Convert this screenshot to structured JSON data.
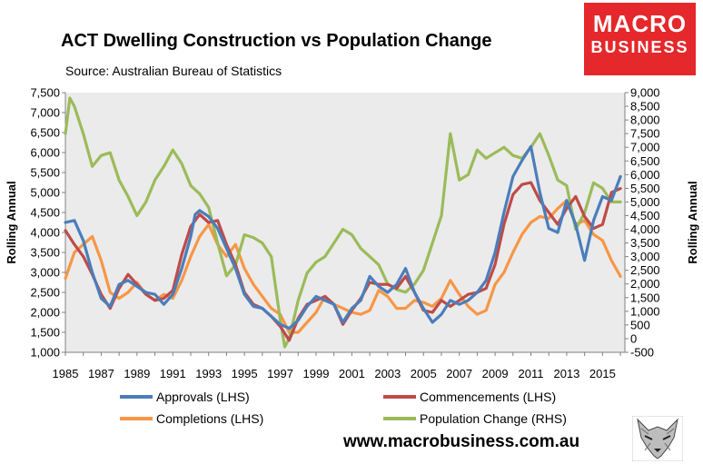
{
  "header": {
    "title": "ACT Dwelling Construction vs Population Change",
    "subtitle": "Source: Australian Bureau of Statistics"
  },
  "logo": {
    "line1": "MACRO",
    "line2": "BUSINESS"
  },
  "footer": {
    "url": "www.macrobusiness.com.au"
  },
  "colors": {
    "approvals": "#4a7ebb",
    "commencements": "#be4b48",
    "completions": "#f79646",
    "population": "#9bbb59",
    "plot_bg": "#ebebeb",
    "logo_bg": "#e5282b"
  },
  "chart_data": {
    "type": "line",
    "title": "ACT Dwelling Construction vs Population Change",
    "subtitle": "Source: Australian Bureau of Statistics",
    "ylabel": "Rolling Annual",
    "y2label": "Rolling Annual",
    "ylim": [
      1000,
      7500
    ],
    "y2lim": [
      -500,
      9000
    ],
    "yticks": [
      "1,000",
      "1,500",
      "2,000",
      "2,500",
      "3,000",
      "3,500",
      "4,000",
      "4,500",
      "5,000",
      "5,500",
      "6,000",
      "6,500",
      "7,000",
      "7,500"
    ],
    "y2ticks": [
      "-500",
      "0",
      "500",
      "1,000",
      "1,500",
      "2,000",
      "2,500",
      "3,000",
      "3,500",
      "4,000",
      "4,500",
      "5,000",
      "5,500",
      "6,000",
      "6,500",
      "7,000",
      "7,500",
      "8,000",
      "8,500",
      "9,000"
    ],
    "xticks": [
      "1985",
      "1987",
      "1989",
      "1991",
      "1993",
      "1995",
      "1997",
      "1999",
      "2001",
      "2003",
      "2005",
      "2007",
      "2009",
      "2011",
      "2013",
      "2015"
    ],
    "xlim": [
      1985,
      2016.25
    ],
    "grid": false,
    "legend_position": "bottom",
    "series": [
      {
        "name": "Approvals (LHS)",
        "axis": "left",
        "color": "#4a7ebb",
        "points": [
          [
            1985,
            4250
          ],
          [
            1985.5,
            4300
          ],
          [
            1986,
            3800
          ],
          [
            1986.5,
            3000
          ],
          [
            1987,
            2350
          ],
          [
            1987.5,
            2150
          ],
          [
            1988,
            2700
          ],
          [
            1988.5,
            2800
          ],
          [
            1989,
            2650
          ],
          [
            1989.5,
            2500
          ],
          [
            1990,
            2450
          ],
          [
            1990.5,
            2200
          ],
          [
            1991,
            2450
          ],
          [
            1991.5,
            3100
          ],
          [
            1992,
            3900
          ],
          [
            1992.25,
            4450
          ],
          [
            1992.5,
            4550
          ],
          [
            1993,
            4400
          ],
          [
            1993.5,
            4100
          ],
          [
            1994,
            3600
          ],
          [
            1994.5,
            3100
          ],
          [
            1995,
            2450
          ],
          [
            1995.5,
            2150
          ],
          [
            1996,
            2100
          ],
          [
            1996.5,
            1900
          ],
          [
            1997,
            1700
          ],
          [
            1997.5,
            1600
          ],
          [
            1998,
            1800
          ],
          [
            1998.5,
            2150
          ],
          [
            1999,
            2400
          ],
          [
            1999.5,
            2300
          ],
          [
            2000,
            2200
          ],
          [
            2000.5,
            1750
          ],
          [
            2001,
            2100
          ],
          [
            2001.5,
            2300
          ],
          [
            2002,
            2900
          ],
          [
            2002.5,
            2650
          ],
          [
            2003,
            2500
          ],
          [
            2003.5,
            2700
          ],
          [
            2004,
            3100
          ],
          [
            2004.5,
            2500
          ],
          [
            2005,
            2100
          ],
          [
            2005.5,
            1750
          ],
          [
            2006,
            1950
          ],
          [
            2006.5,
            2300
          ],
          [
            2007,
            2200
          ],
          [
            2007.5,
            2300
          ],
          [
            2008,
            2500
          ],
          [
            2008.5,
            2800
          ],
          [
            2009,
            3500
          ],
          [
            2009.5,
            4500
          ],
          [
            2010,
            5400
          ],
          [
            2010.5,
            5800
          ],
          [
            2011,
            6150
          ],
          [
            2011.5,
            5000
          ],
          [
            2012,
            4100
          ],
          [
            2012.5,
            4000
          ],
          [
            2013,
            4800
          ],
          [
            2013.5,
            4200
          ],
          [
            2014,
            3300
          ],
          [
            2014.5,
            4300
          ],
          [
            2015,
            4900
          ],
          [
            2015.5,
            4800
          ],
          [
            2016,
            5400
          ]
        ]
      },
      {
        "name": "Commencements (LHS)",
        "axis": "left",
        "color": "#be4b48",
        "points": [
          [
            1985,
            4050
          ],
          [
            1985.5,
            3700
          ],
          [
            1986,
            3400
          ],
          [
            1986.5,
            2950
          ],
          [
            1987,
            2450
          ],
          [
            1987.5,
            2100
          ],
          [
            1988,
            2600
          ],
          [
            1988.5,
            2950
          ],
          [
            1989,
            2700
          ],
          [
            1989.5,
            2450
          ],
          [
            1990,
            2300
          ],
          [
            1990.5,
            2350
          ],
          [
            1991,
            2550
          ],
          [
            1991.5,
            3450
          ],
          [
            1992,
            4150
          ],
          [
            1992.5,
            4450
          ],
          [
            1993,
            4250
          ],
          [
            1993.5,
            4300
          ],
          [
            1994,
            3700
          ],
          [
            1994.5,
            3200
          ],
          [
            1995,
            2500
          ],
          [
            1995.5,
            2200
          ],
          [
            1996,
            2100
          ],
          [
            1996.5,
            1900
          ],
          [
            1997,
            1650
          ],
          [
            1997.5,
            1300
          ],
          [
            1998,
            1850
          ],
          [
            1998.5,
            2200
          ],
          [
            1999,
            2300
          ],
          [
            1999.5,
            2400
          ],
          [
            2000,
            2200
          ],
          [
            2000.5,
            1700
          ],
          [
            2001,
            2050
          ],
          [
            2001.5,
            2350
          ],
          [
            2002,
            2750
          ],
          [
            2002.5,
            2700
          ],
          [
            2003,
            2700
          ],
          [
            2003.5,
            2600
          ],
          [
            2004,
            2900
          ],
          [
            2004.5,
            2500
          ],
          [
            2005,
            2050
          ],
          [
            2005.5,
            2000
          ],
          [
            2006,
            2300
          ],
          [
            2006.5,
            2150
          ],
          [
            2007,
            2300
          ],
          [
            2007.5,
            2450
          ],
          [
            2008,
            2500
          ],
          [
            2008.5,
            2600
          ],
          [
            2009,
            3200
          ],
          [
            2009.5,
            4200
          ],
          [
            2010,
            4950
          ],
          [
            2010.5,
            5200
          ],
          [
            2011,
            5250
          ],
          [
            2011.5,
            4800
          ],
          [
            2012,
            4500
          ],
          [
            2012.5,
            4200
          ],
          [
            2013,
            4600
          ],
          [
            2013.5,
            4900
          ],
          [
            2014,
            4400
          ],
          [
            2014.5,
            4100
          ],
          [
            2015,
            4200
          ],
          [
            2015.5,
            5000
          ],
          [
            2016,
            5100
          ]
        ]
      },
      {
        "name": "Completions (LHS)",
        "axis": "left",
        "color": "#f79646",
        "points": [
          [
            1985,
            2850
          ],
          [
            1985.5,
            3500
          ],
          [
            1986,
            3700
          ],
          [
            1986.5,
            3900
          ],
          [
            1987,
            3300
          ],
          [
            1987.5,
            2500
          ],
          [
            1988,
            2350
          ],
          [
            1988.5,
            2500
          ],
          [
            1989,
            2750
          ],
          [
            1989.5,
            2450
          ],
          [
            1990,
            2300
          ],
          [
            1990.5,
            2450
          ],
          [
            1991,
            2350
          ],
          [
            1991.5,
            2800
          ],
          [
            1992,
            3400
          ],
          [
            1992.5,
            3900
          ],
          [
            1993,
            4200
          ],
          [
            1993.5,
            3700
          ],
          [
            1994,
            3400
          ],
          [
            1994.5,
            3700
          ],
          [
            1995,
            3100
          ],
          [
            1995.5,
            2700
          ],
          [
            1996,
            2400
          ],
          [
            1996.5,
            2100
          ],
          [
            1997,
            1950
          ],
          [
            1997.5,
            1500
          ],
          [
            1998,
            1500
          ],
          [
            1998.5,
            1750
          ],
          [
            1999,
            2000
          ],
          [
            1999.5,
            2400
          ],
          [
            2000,
            2200
          ],
          [
            2000.5,
            2100
          ],
          [
            2001,
            2000
          ],
          [
            2001.5,
            1950
          ],
          [
            2002,
            2050
          ],
          [
            2002.5,
            2550
          ],
          [
            2003,
            2400
          ],
          [
            2003.5,
            2100
          ],
          [
            2004,
            2100
          ],
          [
            2004.5,
            2300
          ],
          [
            2005,
            2250
          ],
          [
            2005.5,
            2150
          ],
          [
            2006,
            2350
          ],
          [
            2006.5,
            2800
          ],
          [
            2007,
            2450
          ],
          [
            2007.5,
            2150
          ],
          [
            2008,
            1950
          ],
          [
            2008.5,
            2050
          ],
          [
            2009,
            2700
          ],
          [
            2009.5,
            3000
          ],
          [
            2010,
            3500
          ],
          [
            2010.5,
            3950
          ],
          [
            2011,
            4250
          ],
          [
            2011.5,
            4400
          ],
          [
            2012,
            4350
          ],
          [
            2012.5,
            4600
          ],
          [
            2013,
            4800
          ],
          [
            2013.5,
            4200
          ],
          [
            2014,
            4300
          ],
          [
            2014.5,
            3950
          ],
          [
            2015,
            3800
          ],
          [
            2015.5,
            3300
          ],
          [
            2016,
            2900
          ]
        ]
      },
      {
        "name": "Population Change (RHS)",
        "axis": "right",
        "color": "#9bbb59",
        "points": [
          [
            1985,
            7500
          ],
          [
            1985.25,
            8800
          ],
          [
            1985.5,
            8500
          ],
          [
            1986,
            7500
          ],
          [
            1986.5,
            6300
          ],
          [
            1987,
            6700
          ],
          [
            1987.5,
            6800
          ],
          [
            1988,
            5800
          ],
          [
            1988.5,
            5200
          ],
          [
            1989,
            4500
          ],
          [
            1989.5,
            5000
          ],
          [
            1990,
            5800
          ],
          [
            1990.5,
            6300
          ],
          [
            1991,
            6900
          ],
          [
            1991.5,
            6400
          ],
          [
            1992,
            5600
          ],
          [
            1992.5,
            5300
          ],
          [
            1993,
            4800
          ],
          [
            1993.5,
            3500
          ],
          [
            1994,
            2300
          ],
          [
            1994.5,
            2700
          ],
          [
            1995,
            3800
          ],
          [
            1995.5,
            3700
          ],
          [
            1996,
            3500
          ],
          [
            1996.5,
            3000
          ],
          [
            1997,
            700
          ],
          [
            1997.25,
            -300
          ],
          [
            1997.5,
            0
          ],
          [
            1998,
            1400
          ],
          [
            1998.5,
            2400
          ],
          [
            1999,
            2800
          ],
          [
            1999.5,
            3000
          ],
          [
            2000,
            3500
          ],
          [
            2000.5,
            4000
          ],
          [
            2001,
            3800
          ],
          [
            2001.5,
            3300
          ],
          [
            2002,
            3000
          ],
          [
            2002.5,
            2700
          ],
          [
            2003,
            2000
          ],
          [
            2003.5,
            1800
          ],
          [
            2004,
            1700
          ],
          [
            2004.5,
            2000
          ],
          [
            2005,
            2500
          ],
          [
            2005.5,
            3500
          ],
          [
            2006,
            4500
          ],
          [
            2006.5,
            7500
          ],
          [
            2007,
            5800
          ],
          [
            2007.5,
            6000
          ],
          [
            2008,
            6900
          ],
          [
            2008.5,
            6600
          ],
          [
            2009,
            6800
          ],
          [
            2009.5,
            7000
          ],
          [
            2010,
            6700
          ],
          [
            2010.5,
            6600
          ],
          [
            2011,
            7000
          ],
          [
            2011.5,
            7500
          ],
          [
            2012,
            6700
          ],
          [
            2012.5,
            5800
          ],
          [
            2013,
            5600
          ],
          [
            2013.5,
            4000
          ],
          [
            2014,
            4600
          ],
          [
            2014.5,
            5700
          ],
          [
            2015,
            5500
          ],
          [
            2015.5,
            5000
          ],
          [
            2016,
            5000
          ]
        ]
      }
    ]
  }
}
